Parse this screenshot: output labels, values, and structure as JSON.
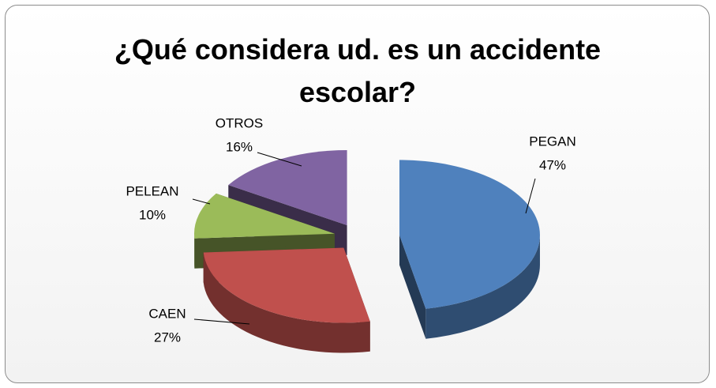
{
  "chart_data": {
    "type": "pie",
    "title": "¿Qué considera ud. es un accidente escolar?",
    "categories": [
      "PEGAN",
      "CAEN",
      "PELEAN",
      "OTROS"
    ],
    "values": [
      47,
      27,
      10,
      16
    ],
    "value_labels": [
      "47%",
      "27%",
      "10%",
      "16%"
    ],
    "colors": [
      "#4f81bd",
      "#c0504d",
      "#9bbb59",
      "#8064a2"
    ]
  }
}
